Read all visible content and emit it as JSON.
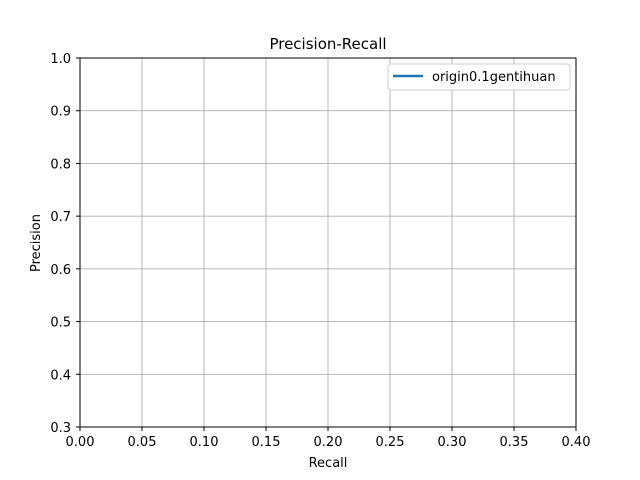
{
  "chart_data": {
    "type": "line",
    "title": "Precision-Recall",
    "xlabel": "Recall",
    "ylabel": "Precision",
    "xlim": [
      0.0,
      0.4
    ],
    "ylim": [
      0.3,
      1.0
    ],
    "x_ticks": [
      "0.00",
      "0.05",
      "0.10",
      "0.15",
      "0.20",
      "0.25",
      "0.30",
      "0.35",
      "0.40"
    ],
    "y_ticks": [
      "0.3",
      "0.4",
      "0.5",
      "0.6",
      "0.7",
      "0.8",
      "0.9",
      "1.0"
    ],
    "grid": true,
    "legend_position": "top-right",
    "series": [
      {
        "name": "origin0.1gentihuan",
        "color": "#1f77b4",
        "x": [],
        "y": []
      }
    ]
  }
}
